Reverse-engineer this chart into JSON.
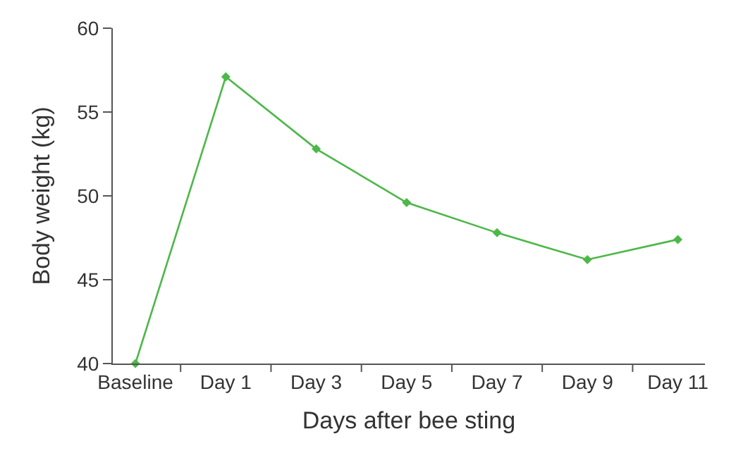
{
  "chart_data": {
    "type": "line",
    "xlabel": "Days after bee sting",
    "ylabel": "Body weight (kg)",
    "categories": [
      "Baseline",
      "Day 1",
      "Day 3",
      "Day 5",
      "Day 7",
      "Day 9",
      "Day 11"
    ],
    "series": [
      {
        "color": "#4cb848",
        "values": [
          40,
          57.1,
          52.8,
          49.6,
          47.8,
          46.2,
          47.4
        ]
      }
    ],
    "ylim": [
      40,
      60
    ],
    "yticks": [
      40,
      45,
      50,
      55,
      60
    ],
    "legend": false,
    "marker": "diamond",
    "line_style": "solid"
  }
}
